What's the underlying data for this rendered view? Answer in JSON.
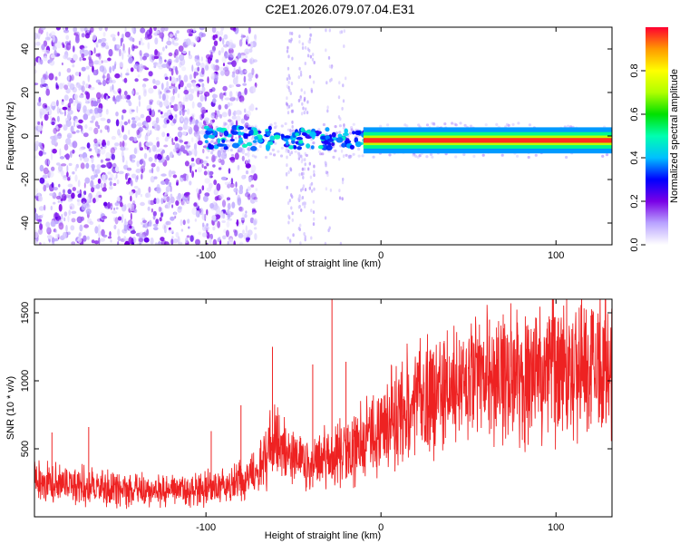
{
  "title": "C2E1.2026.079.07.04.E31",
  "chart_data": [
    {
      "type": "heatmap",
      "name": "spectrogram",
      "xlabel": "Height of straight line (km)",
      "ylabel": "Frequency (Hz)",
      "xlim": [
        -198,
        132
      ],
      "ylim": [
        -50,
        50
      ],
      "x_ticks": [
        -100,
        0,
        100
      ],
      "x_tick_labels": [
        "-100",
        "0",
        "100"
      ],
      "y_ticks": [
        -40,
        -20,
        0,
        20,
        40
      ],
      "y_tick_labels": [
        "-40",
        "-20",
        "0",
        "20",
        "40"
      ],
      "colorbar": {
        "label": "Normalized spectral amplitude",
        "range": [
          0,
          1
        ],
        "ticks": [
          0.0,
          0.2,
          0.4,
          0.6,
          0.8
        ],
        "tick_labels": [
          "0.0",
          "0.2",
          "0.4",
          "0.6",
          "0.8"
        ],
        "colors": [
          "#ffffff",
          "#b9a3ff",
          "#7a00e6",
          "#0000ff",
          "#00c0ff",
          "#00ffb0",
          "#00e000",
          "#b0ff00",
          "#ffff00",
          "#ff9900",
          "#ff0030"
        ]
      },
      "features": {
        "noise_region_x": [
          -198,
          -75
        ],
        "sparse_region_x": [
          -75,
          -20
        ],
        "signal_band_x": [
          -100,
          132
        ],
        "signal_center_hz": -2,
        "strong_band_start_x": -10
      },
      "colors": {
        "noise_dark": "#8b00ff",
        "noise_light": "#d2bfff",
        "band_red": "#ff0030"
      }
    },
    {
      "type": "line",
      "name": "snr",
      "xlabel": "Height of straight line (km)",
      "ylabel": "SNR (10 * v/v)",
      "xlim": [
        -198,
        132
      ],
      "ylim": [
        0,
        1600
      ],
      "x_ticks": [
        -100,
        0,
        100
      ],
      "x_tick_labels": [
        "-100",
        "0",
        "100"
      ],
      "y_ticks": [
        500,
        1000,
        1500
      ],
      "y_tick_labels": [
        "500",
        "1000",
        "1500"
      ],
      "color": "#ee2222",
      "trend": {
        "x": [
          -198,
          -170,
          -150,
          -130,
          -110,
          -90,
          -80,
          -70,
          -62,
          -55,
          -45,
          -38,
          -30,
          -20,
          -10,
          0,
          10,
          20,
          30,
          45,
          60,
          80,
          100,
          115,
          132
        ],
        "y": [
          260,
          230,
          200,
          190,
          195,
          220,
          260,
          330,
          560,
          460,
          380,
          360,
          470,
          470,
          540,
          650,
          760,
          860,
          900,
          960,
          1010,
          1060,
          1100,
          1130,
          1160
        ]
      },
      "spikes": [
        {
          "x": -188,
          "y": 620
        },
        {
          "x": -167,
          "y": 660
        },
        {
          "x": -97,
          "y": 630
        },
        {
          "x": -80,
          "y": 820
        },
        {
          "x": -62,
          "y": 1250
        },
        {
          "x": -39,
          "y": 1120
        },
        {
          "x": -28,
          "y": 1600
        },
        {
          "x": -20,
          "y": 1140
        },
        {
          "x": 62,
          "y": 1450
        },
        {
          "x": 120,
          "y": 1480
        }
      ]
    }
  ]
}
